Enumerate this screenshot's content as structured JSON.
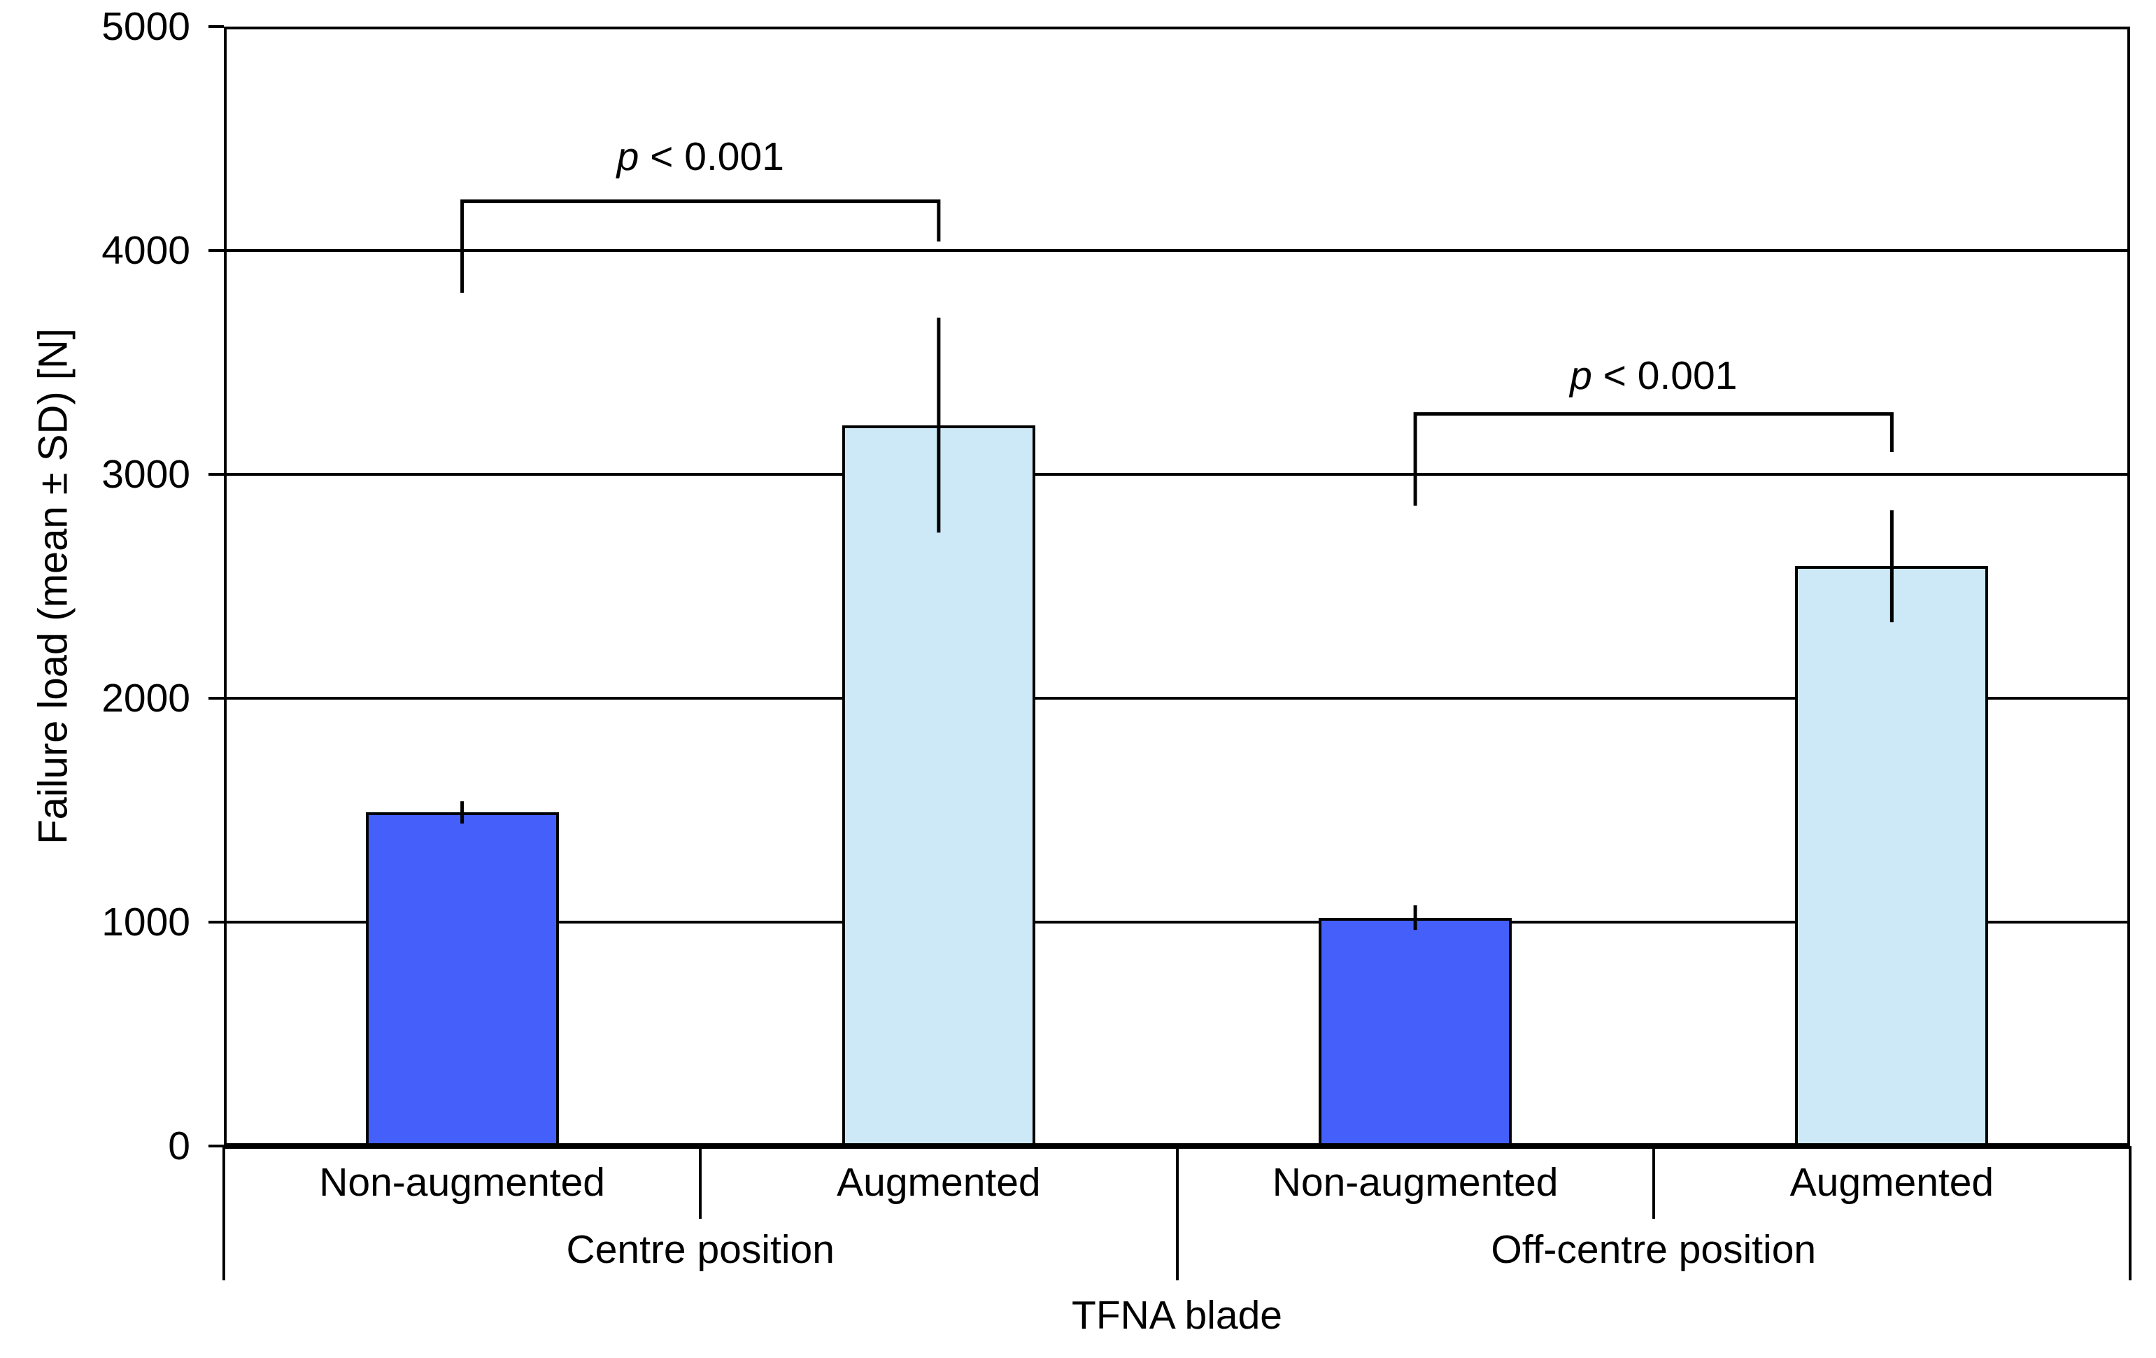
{
  "figure": {
    "background": "#ffffff",
    "text_color": "#000000"
  },
  "chart_data": {
    "type": "bar",
    "title": "",
    "xlabel": "TFNA blade",
    "ylabel": "Failure load (mean ± SD) [N]",
    "ylim": [
      0,
      5000
    ],
    "ytick_step": 1000,
    "yticks": [
      0,
      1000,
      2000,
      3000,
      4000,
      5000
    ],
    "grid": true,
    "legend_position": "none",
    "categories": [
      "Non-augmented",
      "Augmented",
      "Non-augmented",
      "Augmented"
    ],
    "groups": [
      {
        "label": "Centre position",
        "bars": [
          {
            "category": "Non-augmented",
            "mean": 1490,
            "sd": 50,
            "fill": "#4560FA"
          },
          {
            "category": "Augmented",
            "mean": 3220,
            "sd": 480,
            "fill": "#CDE9F7"
          }
        ]
      },
      {
        "label": "Off-centre position",
        "bars": [
          {
            "category": "Non-augmented",
            "mean": 1020,
            "sd": 55,
            "fill": "#4560FA"
          },
          {
            "category": "Augmented",
            "mean": 2590,
            "sd": 250,
            "fill": "#CDE9F7"
          }
        ]
      }
    ],
    "significance_brackets": [
      {
        "label": "p < 0.001",
        "from_bar": 0,
        "to_bar": 1,
        "bracket_y": 4220,
        "left_leg_to": 3810,
        "right_leg_to": 4040,
        "label_y": 4420
      },
      {
        "label": "p < 0.001",
        "from_bar": 2,
        "to_bar": 3,
        "bracket_y": 3270,
        "left_leg_to": 2860,
        "right_leg_to": 3100,
        "label_y": 3440
      }
    ],
    "colors": {
      "bar_non_augmented": "#4560FA",
      "bar_augmented": "#CDE9F7",
      "axis": "#000000",
      "grid": "#000000",
      "error_bar": "#000000",
      "text": "#000000"
    }
  }
}
